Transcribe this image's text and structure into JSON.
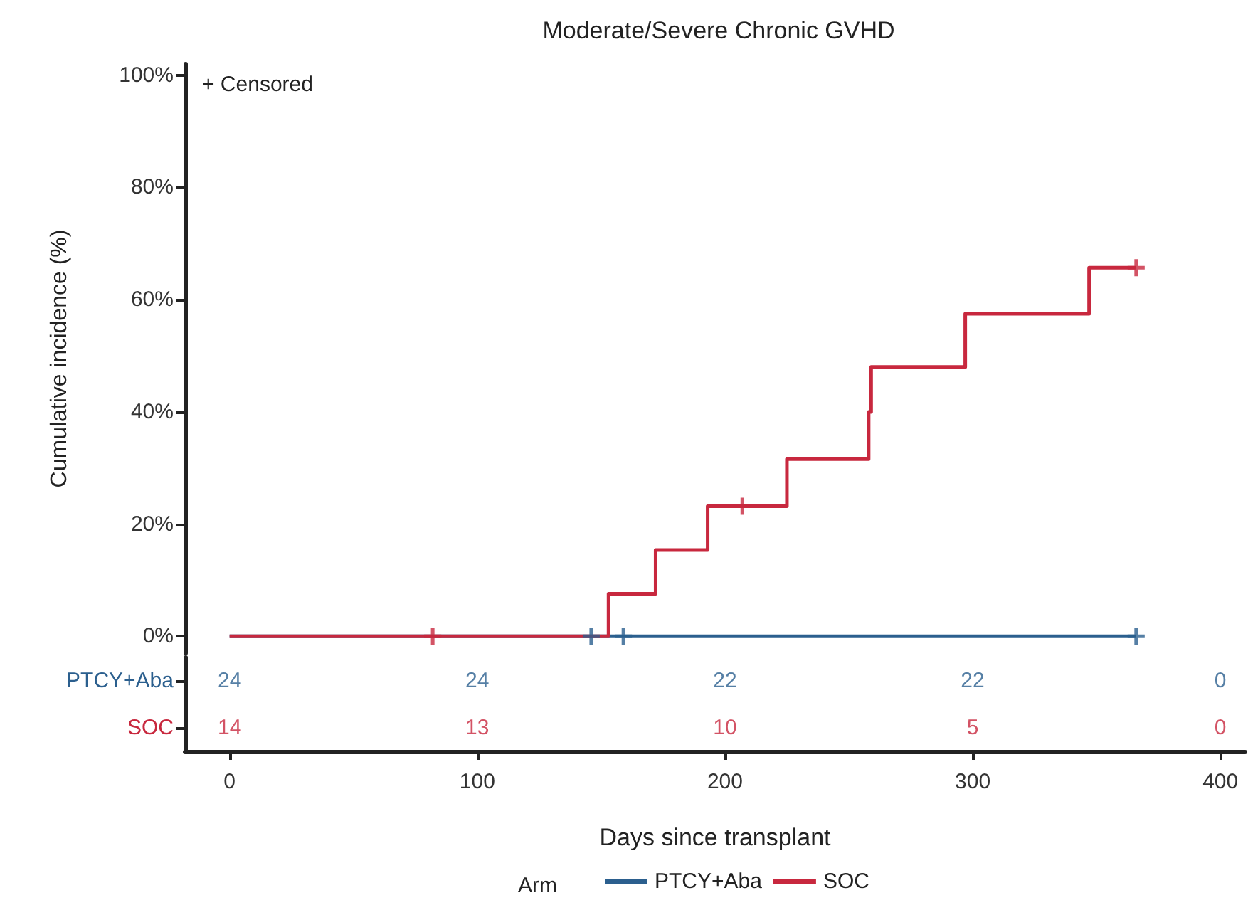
{
  "chart_data": [
    {
      "type": "step",
      "title": "Moderate/Severe Chronic GVHD",
      "xlabel": "Days since transplant",
      "ylabel": "Cumulative incidence (%)",
      "annotations": [
        "+ Censored"
      ],
      "legend": "bottom",
      "legend_title": "Arm",
      "marker": "none",
      "line_style": "solid",
      "grid": false,
      "xlim": [
        -18,
        410
      ],
      "xticks": [
        0,
        100,
        200,
        300,
        400
      ],
      "ylim": [
        -3,
        102
      ],
      "yticks": [
        {
          "value": 0,
          "label": "0%"
        },
        {
          "value": 20,
          "label": "20%"
        },
        {
          "value": 40,
          "label": "40%"
        },
        {
          "value": 60,
          "label": "60%"
        },
        {
          "value": 80,
          "label": "80%"
        },
        {
          "value": 100,
          "label": "100%"
        }
      ],
      "series": [
        {
          "name": "PTCY+Aba",
          "color": "#2b5f8e",
          "x": [
            0,
            366
          ],
          "values": [
            0,
            0
          ]
        },
        {
          "name": "SOC",
          "color": "#c8283e",
          "x": [
            0,
            153,
            172,
            193,
            225,
            258,
            259,
            297,
            347,
            366
          ],
          "values": [
            0,
            7.6,
            15.4,
            23.2,
            31.6,
            40,
            48,
            57.5,
            65.7,
            65.7
          ]
        },
        {
          "type": "scatter",
          "marker": "cross",
          "color": "#2b5f8e",
          "x": [
            146,
            159,
            366
          ],
          "values": [
            0,
            0,
            0
          ]
        },
        {
          "type": "scatter",
          "marker": "cross",
          "color": "#c8283e",
          "x": [
            82,
            207,
            366
          ],
          "values": [
            0,
            23.2,
            65.7
          ]
        }
      ]
    },
    {
      "type": "heatmap",
      "data_labels": true,
      "tick_labels": "y",
      "x": [
        0,
        100,
        200,
        300,
        400
      ],
      "xlim": [
        -18,
        410
      ],
      "y_categories": [
        "PTCY+Aba",
        "SOC"
      ],
      "cells": [
        [
          24,
          24,
          22,
          22,
          0
        ],
        [
          14,
          13,
          10,
          5,
          0
        ]
      ]
    }
  ]
}
